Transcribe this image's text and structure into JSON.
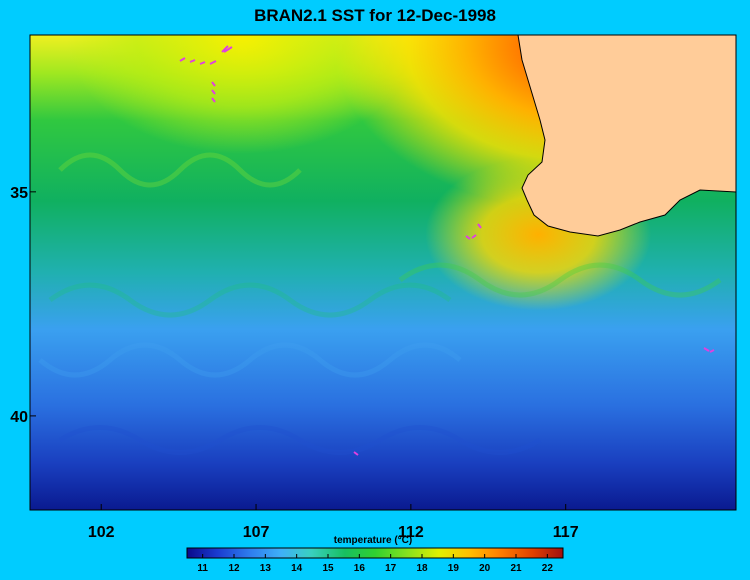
{
  "title": "BRAN2.1 SST for 12-Dec-1998",
  "chart_data": {
    "type": "heatmap",
    "title": "BRAN2.1 SST for 12-Dec-1998",
    "x_ticks": [
      102,
      107,
      112,
      117
    ],
    "x_tick_labels": [
      "102",
      "107",
      "112",
      "117"
    ],
    "y_ticks": [
      35,
      40
    ],
    "y_tick_labels": [
      "35",
      "40"
    ],
    "xlim": [
      99.7,
      122.5
    ],
    "ylim": [
      31.5,
      42.1
    ],
    "colorbar": {
      "label": "temperature (°C)",
      "ticks": [
        "11",
        "12",
        "13",
        "14",
        "15",
        "16",
        "17",
        "18",
        "19",
        "20",
        "21",
        "22"
      ],
      "range": [
        10.5,
        22.5
      ],
      "colors": [
        "#0a0a8a",
        "#1a3ad0",
        "#2f7fee",
        "#3fb0f8",
        "#39d0c0",
        "#18c060",
        "#30d030",
        "#80e020",
        "#e0f000",
        "#ffc000",
        "#ff8000",
        "#e04000",
        "#a01010"
      ]
    },
    "land_color": "#ffcc99",
    "marker_color": "#e040e0"
  }
}
